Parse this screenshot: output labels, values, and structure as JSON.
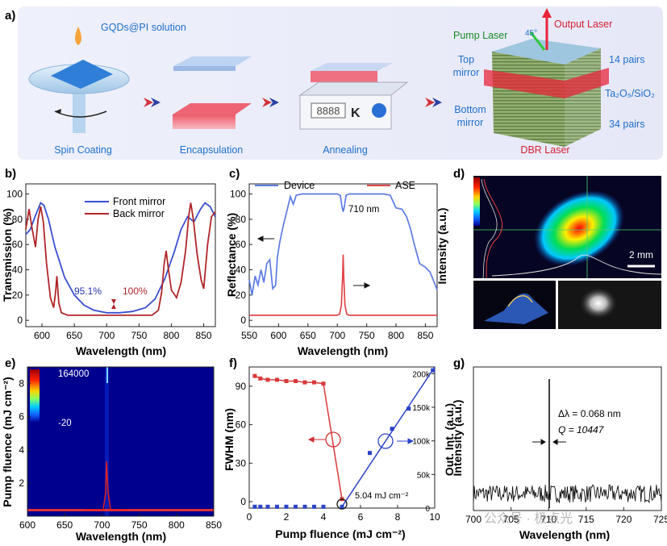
{
  "panel_a": {
    "label": "a)",
    "solution_label": "GQDs@PI solution",
    "steps": [
      "Spin Coating",
      "Encapsulation",
      "Annealing",
      "DBR Laser"
    ],
    "scale_display": "8888",
    "scale_unit": "K",
    "pump_label": "Pump Laser",
    "output_label": "Output Laser",
    "angle_label": "45°",
    "top_mirror": [
      "Top",
      "mirror"
    ],
    "bottom_mirror": [
      "Bottom",
      "mirror"
    ],
    "top_pairs": "14 pairs",
    "bottom_pairs": "34 pairs",
    "material": "Ta₂O₅/SiO₂"
  },
  "panel_b": {
    "label": "b)",
    "ylabel": "Transmission (%)",
    "xlabel": "Wavelength (nm)",
    "annot_front": "95.1%",
    "annot_back": "100%",
    "legend": [
      "Front mirror",
      "Back mirror"
    ],
    "colors": {
      "front": "#3a4fd0",
      "back": "#b0262a"
    },
    "xticks": [
      "600",
      "650",
      "700",
      "750",
      "800",
      "850"
    ],
    "yticks": [
      "0",
      "20",
      "40",
      "60",
      "80",
      "100"
    ]
  },
  "panel_c": {
    "label": "c)",
    "ylabel": "Reflectance (%)",
    "xlabel": "Wavelength (nm)",
    "legend_device": "Device",
    "legend_ase": "ASE",
    "annot_dip": "710 nm",
    "xticks": [
      "550",
      "600",
      "650",
      "700",
      "750",
      "800",
      "850"
    ],
    "yticks": [
      "0",
      "20",
      "40",
      "60",
      "80",
      "100"
    ]
  },
  "panel_d": {
    "label": "d)",
    "ylabel": "Intensity (a.u.)",
    "scalebar": "2 mm"
  },
  "panel_e": {
    "label": "e)",
    "ylabel": "Pump fluence (mJ cm⁻²)",
    "xlabel": "Wavelength (nm)",
    "cbar_max": "164000",
    "cbar_min": "-20",
    "xticks": [
      "600",
      "650",
      "700",
      "750",
      "800",
      "850"
    ],
    "yticks": [
      "2",
      "4",
      "6",
      "8"
    ]
  },
  "panel_f": {
    "label": "f)",
    "ylabel_left": "FWHM (nm)",
    "ylabel_right": "Out. Int. (a.u.)",
    "xlabel": "Pump fluence (mJ cm⁻²)",
    "threshold": "5.04 mJ cm⁻²",
    "xticks": [
      "0",
      "2",
      "4",
      "6",
      "8",
      "10"
    ],
    "yticks_left": [
      "0",
      "30",
      "60",
      "90"
    ],
    "yticks_right": [
      "0",
      "50k",
      "100k",
      "150k",
      "200k"
    ]
  },
  "panel_g": {
    "label": "g)",
    "ylabel": "Intensity (a.u.)",
    "xlabel": "Wavelength (nm)",
    "annot_dl": "Δλ = 0.068 nm",
    "annot_q": "Q = 10447",
    "xticks": [
      "700",
      "705",
      "710",
      "715",
      "720",
      "725"
    ]
  },
  "watermark": "公众号 · 极点光",
  "chart_data": [
    {
      "type": "line",
      "panel": "b",
      "xlabel": "Wavelength (nm)",
      "ylabel": "Transmission (%)",
      "xlim": [
        575,
        868
      ],
      "ylim": [
        -5,
        108
      ],
      "series": [
        {
          "name": "Front mirror",
          "x": [
            575,
            582,
            590,
            598,
            603,
            610,
            620,
            635,
            650,
            665,
            680,
            700,
            720,
            740,
            760,
            775,
            790,
            805,
            815,
            825,
            835,
            845,
            852,
            860,
            868
          ],
          "y": [
            68,
            72,
            83,
            93,
            91,
            80,
            58,
            34,
            20,
            12,
            8,
            6,
            6,
            7,
            10,
            17,
            33,
            55,
            72,
            82,
            78,
            88,
            93,
            90,
            82
          ]
        },
        {
          "name": "Back mirror",
          "x": [
            575,
            580,
            585,
            590,
            594,
            598,
            602,
            607,
            613,
            618,
            621,
            623,
            626,
            630,
            640,
            660,
            700,
            740,
            770,
            780,
            785,
            789,
            792,
            795,
            800,
            808,
            815,
            822,
            827,
            830,
            834,
            840,
            846,
            850,
            856,
            862,
            868
          ],
          "y": [
            72,
            88,
            72,
            58,
            80,
            90,
            78,
            45,
            18,
            10,
            22,
            35,
            14,
            6,
            4,
            4,
            4,
            4,
            4,
            8,
            22,
            45,
            55,
            42,
            24,
            18,
            30,
            55,
            83,
            93,
            80,
            52,
            32,
            25,
            60,
            82,
            86
          ]
        }
      ]
    },
    {
      "type": "line",
      "panel": "c",
      "xlabel": "Wavelength (nm)",
      "ylabel": "Reflectance (%)",
      "xlim": [
        550,
        870
      ],
      "ylim": [
        -5,
        108
      ],
      "series": [
        {
          "name": "Device",
          "x": [
            550,
            555,
            560,
            565,
            570,
            575,
            580,
            585,
            590,
            595,
            598,
            602,
            608,
            615,
            620,
            625,
            630,
            640,
            660,
            680,
            700,
            705,
            708,
            710,
            712,
            715,
            720,
            740,
            760,
            780,
            790,
            800,
            810,
            818,
            825,
            830,
            840,
            850,
            858,
            865,
            870
          ],
          "y": [
            32,
            20,
            35,
            28,
            40,
            30,
            45,
            48,
            25,
            28,
            50,
            62,
            75,
            88,
            98,
            92,
            99,
            100,
            100,
            100,
            100,
            99,
            90,
            86,
            90,
            99,
            100,
            100,
            100,
            100,
            99,
            89,
            88,
            82,
            72,
            62,
            45,
            42,
            38,
            30,
            24
          ]
        },
        {
          "name": "ASE",
          "x": [
            550,
            600,
            650,
            690,
            700,
            704,
            707,
            709,
            710,
            711,
            713,
            716,
            720,
            730,
            760,
            800,
            870
          ],
          "y": [
            4,
            4,
            4,
            4,
            4,
            5,
            12,
            35,
            52,
            35,
            12,
            5,
            4,
            4,
            4,
            4,
            4
          ]
        }
      ]
    },
    {
      "type": "heatmap",
      "panel": "e",
      "xlabel": "Wavelength (nm)",
      "ylabel": "Pump fluence (mJ cm⁻²)",
      "xlim": [
        600,
        850
      ],
      "ylim": [
        0,
        9
      ],
      "peak_wavelength": 710,
      "colorbar_range": [
        -20,
        164000
      ]
    },
    {
      "type": "scatter",
      "panel": "f",
      "xlabel": "Pump fluence (mJ cm⁻²)",
      "xlim": [
        0,
        10
      ],
      "ylim_left": [
        -5,
        105
      ],
      "ylim_right": [
        0,
        210000
      ],
      "series": [
        {
          "name": "FWHM",
          "axis": "left",
          "x": [
            0.3,
            0.6,
            1.0,
            1.5,
            2.0,
            2.5,
            3.0,
            3.5,
            4.0,
            5.0
          ],
          "y": [
            98,
            96,
            95,
            95,
            94,
            94,
            93,
            93,
            92,
            2
          ]
        },
        {
          "name": "Out. Int.",
          "axis": "right",
          "x": [
            0.3,
            0.6,
            1.0,
            1.5,
            2.0,
            2.5,
            3.0,
            3.5,
            4.0,
            5.0,
            6.5,
            7.7,
            8.6,
            9.9
          ],
          "y": [
            2000,
            2000,
            2000,
            2000,
            2000,
            2000,
            2000,
            2000,
            2000,
            2000,
            82000,
            118000,
            148000,
            205000
          ]
        }
      ]
    },
    {
      "type": "line",
      "panel": "g",
      "xlabel": "Wavelength (nm)",
      "ylabel": "Intensity (a.u.)",
      "xlim": [
        700,
        725
      ],
      "ylim": [
        0,
        1
      ],
      "peak": 710.2,
      "fwhm_nm": 0.068,
      "q_factor": 10447
    }
  ]
}
